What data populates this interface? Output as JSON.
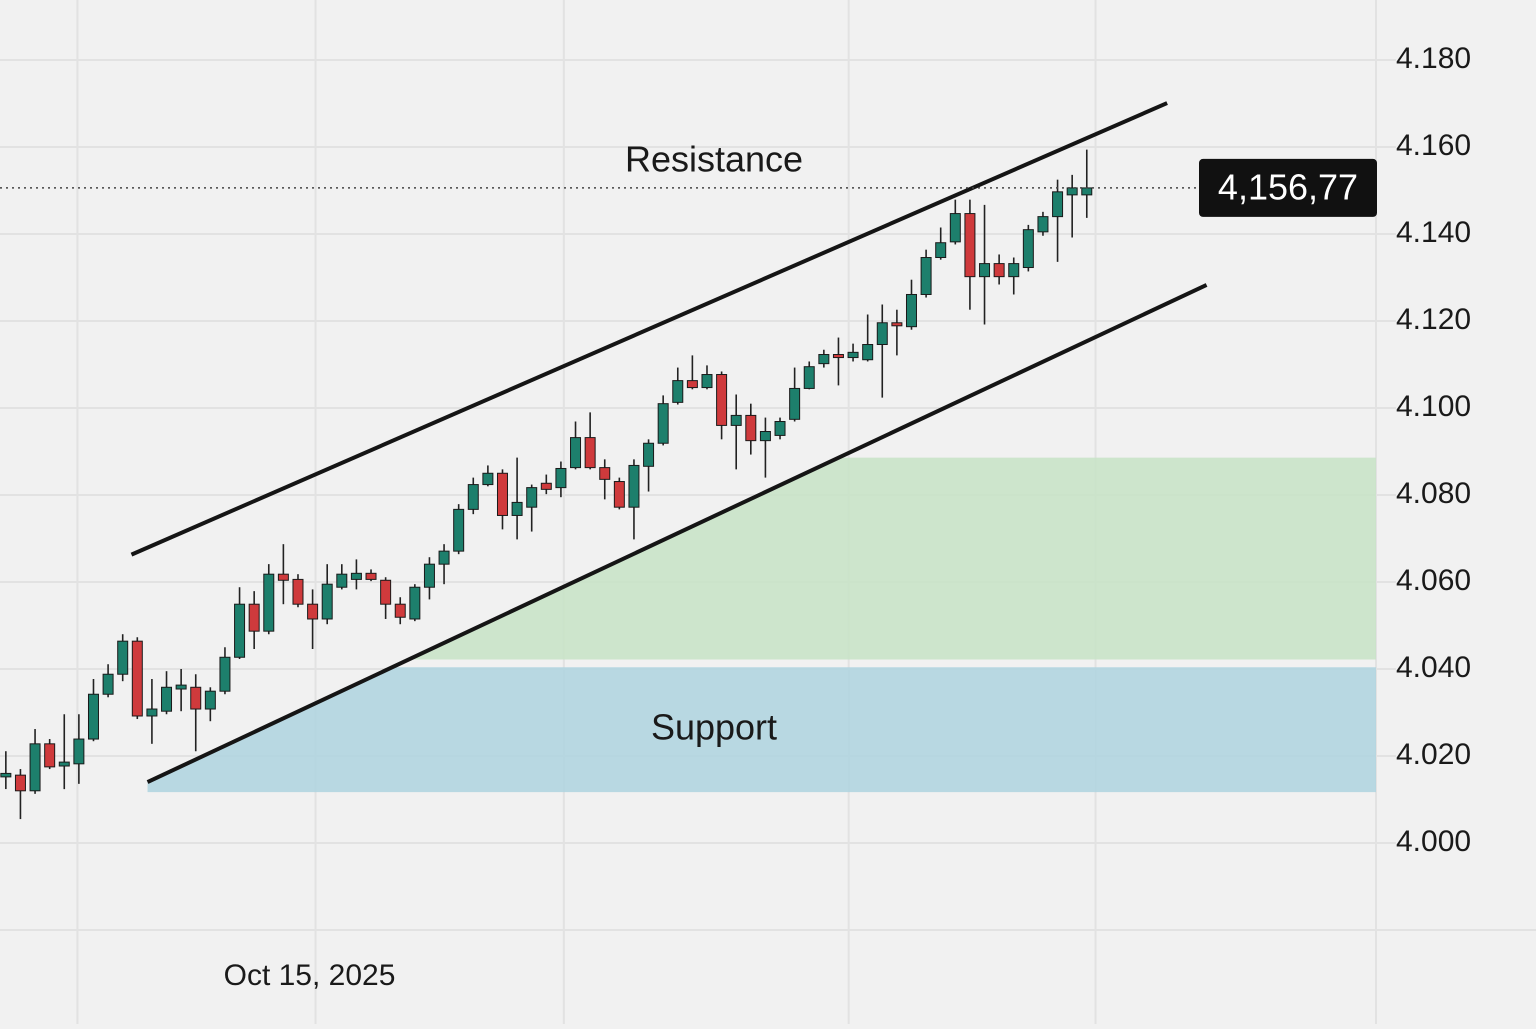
{
  "chart_data": {
    "type": "candlestick",
    "ylim": [
      3.98,
      4.1938
    ],
    "yticks": [
      {
        "value": 4.0,
        "label": "4.000"
      },
      {
        "value": 4.02,
        "label": "4.020"
      },
      {
        "value": 4.04,
        "label": "4.040"
      },
      {
        "value": 4.06,
        "label": "4.060"
      },
      {
        "value": 4.08,
        "label": "4.080"
      },
      {
        "value": 4.1,
        "label": "4.100"
      },
      {
        "value": 4.12,
        "label": "4.120"
      },
      {
        "value": 4.14,
        "label": "4.140"
      },
      {
        "value": 4.16,
        "label": "4.160"
      },
      {
        "value": 4.18,
        "label": "4.180"
      }
    ],
    "xlim": [
      -0.4,
      93.8
    ],
    "xticks": [
      {
        "value": 21.2,
        "label": "Oct 15, 2025"
      }
    ],
    "xgrid": [
      4.9,
      38.2,
      57.7,
      74.6
    ],
    "grid": true,
    "up_color": "#1d7f6c",
    "down_color": "#cf3a3c",
    "x": [
      0,
      1,
      2,
      3,
      4,
      5,
      6,
      7,
      8,
      9,
      10,
      11,
      12,
      13,
      14,
      15,
      16,
      17,
      18,
      19,
      20,
      21,
      22,
      23,
      24,
      25,
      26,
      27,
      28,
      29,
      30,
      31,
      32,
      33,
      34,
      35,
      36,
      37,
      38,
      39,
      40,
      41,
      42,
      43,
      44,
      45,
      46,
      47,
      48,
      49,
      50,
      51,
      52,
      53,
      54,
      55,
      56,
      57,
      58,
      59,
      60,
      61,
      62,
      63,
      64,
      65,
      66,
      67,
      68,
      69,
      70,
      71,
      72,
      73,
      74
    ],
    "open": [
      4.0152,
      4.0156,
      4.012,
      4.0228,
      4.0177,
      4.0182,
      4.0239,
      4.0342,
      4.0388,
      4.0464,
      4.0292,
      4.0303,
      4.0354,
      4.0358,
      4.0308,
      4.0349,
      4.0427,
      4.0549,
      4.0487,
      4.0618,
      4.0606,
      4.0549,
      4.0515,
      4.0588,
      4.0606,
      4.062,
      4.0604,
      4.0549,
      4.0515,
      4.0588,
      4.0641,
      4.0671,
      4.0767,
      4.0824,
      4.085,
      4.0753,
      4.0772,
      4.0827,
      4.0817,
      4.0863,
      4.0932,
      4.0863,
      4.0831,
      4.0772,
      4.0866,
      4.0919,
      4.1013,
      4.1063,
      4.1047,
      4.1077,
      4.096,
      4.0983,
      4.0925,
      4.0937,
      4.0974,
      4.1045,
      4.1102,
      4.1123,
      4.1116,
      4.1111,
      4.1146,
      4.1196,
      4.1187,
      4.1261,
      4.1346,
      4.1382,
      4.1447,
      4.1302,
      4.1332,
      4.1302,
      4.1323,
      4.1405,
      4.144,
      4.149,
      4.149
    ],
    "high": [
      4.0211,
      4.017,
      4.0262,
      4.0239,
      4.0296,
      4.0296,
      4.0377,
      4.0411,
      4.048,
      4.0473,
      4.0377,
      4.0395,
      4.04,
      4.0388,
      4.0358,
      4.045,
      4.0588,
      4.0579,
      4.0641,
      4.0687,
      4.0618,
      4.0583,
      4.0641,
      4.0641,
      4.0652,
      4.0629,
      4.0611,
      4.0565,
      4.0595,
      4.0657,
      4.0687,
      4.0779,
      4.084,
      4.0868,
      4.0859,
      4.0886,
      4.0824,
      4.0847,
      4.0877,
      4.0969,
      4.099,
      4.0882,
      4.084,
      4.0882,
      4.0928,
      4.1029,
      4.1093,
      4.1121,
      4.1098,
      4.1084,
      4.1031,
      4.101,
      4.0978,
      4.0978,
      4.1093,
      4.1107,
      4.1134,
      4.1162,
      4.1148,
      4.1215,
      4.1238,
      4.1226,
      4.1295,
      4.1364,
      4.1415,
      4.1479,
      4.1479,
      4.1467,
      4.1353,
      4.1346,
      4.1421,
      4.1451,
      4.1525,
      4.1536,
      4.1594
    ],
    "low": [
      4.0124,
      4.0055,
      4.0113,
      4.017,
      4.0124,
      4.0136,
      4.0234,
      4.0335,
      4.0372,
      4.0285,
      4.0228,
      4.0296,
      4.0303,
      4.0211,
      4.028,
      4.0342,
      4.0423,
      4.0446,
      4.048,
      4.0549,
      4.0542,
      4.0446,
      4.0503,
      4.0583,
      4.0583,
      4.0602,
      4.0515,
      4.0503,
      4.051,
      4.056,
      4.0595,
      4.0664,
      4.0756,
      4.082,
      4.0721,
      4.0698,
      4.0716,
      4.0802,
      4.0795,
      4.0859,
      4.0859,
      4.079,
      4.0767,
      4.0698,
      4.0808,
      4.0914,
      4.1008,
      4.1043,
      4.1043,
      4.0928,
      4.0859,
      4.0893,
      4.084,
      4.0928,
      4.0969,
      4.1043,
      4.1093,
      4.1052,
      4.1107,
      4.1107,
      4.1024,
      4.1121,
      4.118,
      4.1254,
      4.1341,
      4.1376,
      4.1226,
      4.1192,
      4.1284,
      4.1261,
      4.1314,
      4.1396,
      4.1336,
      4.1392,
      4.1437
    ],
    "close": [
      4.016,
      4.012,
      4.0228,
      4.0175,
      4.0186,
      4.0239,
      4.0342,
      4.0388,
      4.0464,
      4.0292,
      4.0308,
      4.0358,
      4.0363,
      4.0308,
      4.0349,
      4.0427,
      4.0549,
      4.0487,
      4.0618,
      4.0604,
      4.0549,
      4.0515,
      4.0595,
      4.0618,
      4.062,
      4.0606,
      4.0549,
      4.0519,
      4.0588,
      4.0641,
      4.0671,
      4.0767,
      4.0824,
      4.085,
      4.0753,
      4.0783,
      4.0817,
      4.0813,
      4.0861,
      4.0932,
      4.0863,
      4.0836,
      4.0772,
      4.0868,
      4.0919,
      4.101,
      4.1063,
      4.1047,
      4.1077,
      4.096,
      4.0983,
      4.0925,
      4.0946,
      4.0969,
      4.1045,
      4.1095,
      4.1123,
      4.1116,
      4.1128,
      4.1146,
      4.1196,
      4.1189,
      4.1261,
      4.1346,
      4.138,
      4.1447,
      4.1302,
      4.1332,
      4.1302,
      4.1332,
      4.141,
      4.144,
      4.1497,
      4.1506,
      4.1506
    ],
    "price_label": "4,156,77",
    "trendlines": [
      {
        "x": [
          8.6,
          79.5
        ],
        "y": [
          4.0663,
          4.1701
        ]
      },
      {
        "x": [
          9.7,
          82.2
        ],
        "y": [
          4.014,
          4.1283
        ]
      }
    ],
    "zones": [
      {
        "ylim": [
          4.0422,
          4.0886
        ],
        "color": "#c9e3c8"
      },
      {
        "ylim": [
          4.0117,
          4.0404
        ],
        "color": "#b1d5e0"
      }
    ],
    "annotations": [
      "Resistance",
      "Support"
    ]
  }
}
